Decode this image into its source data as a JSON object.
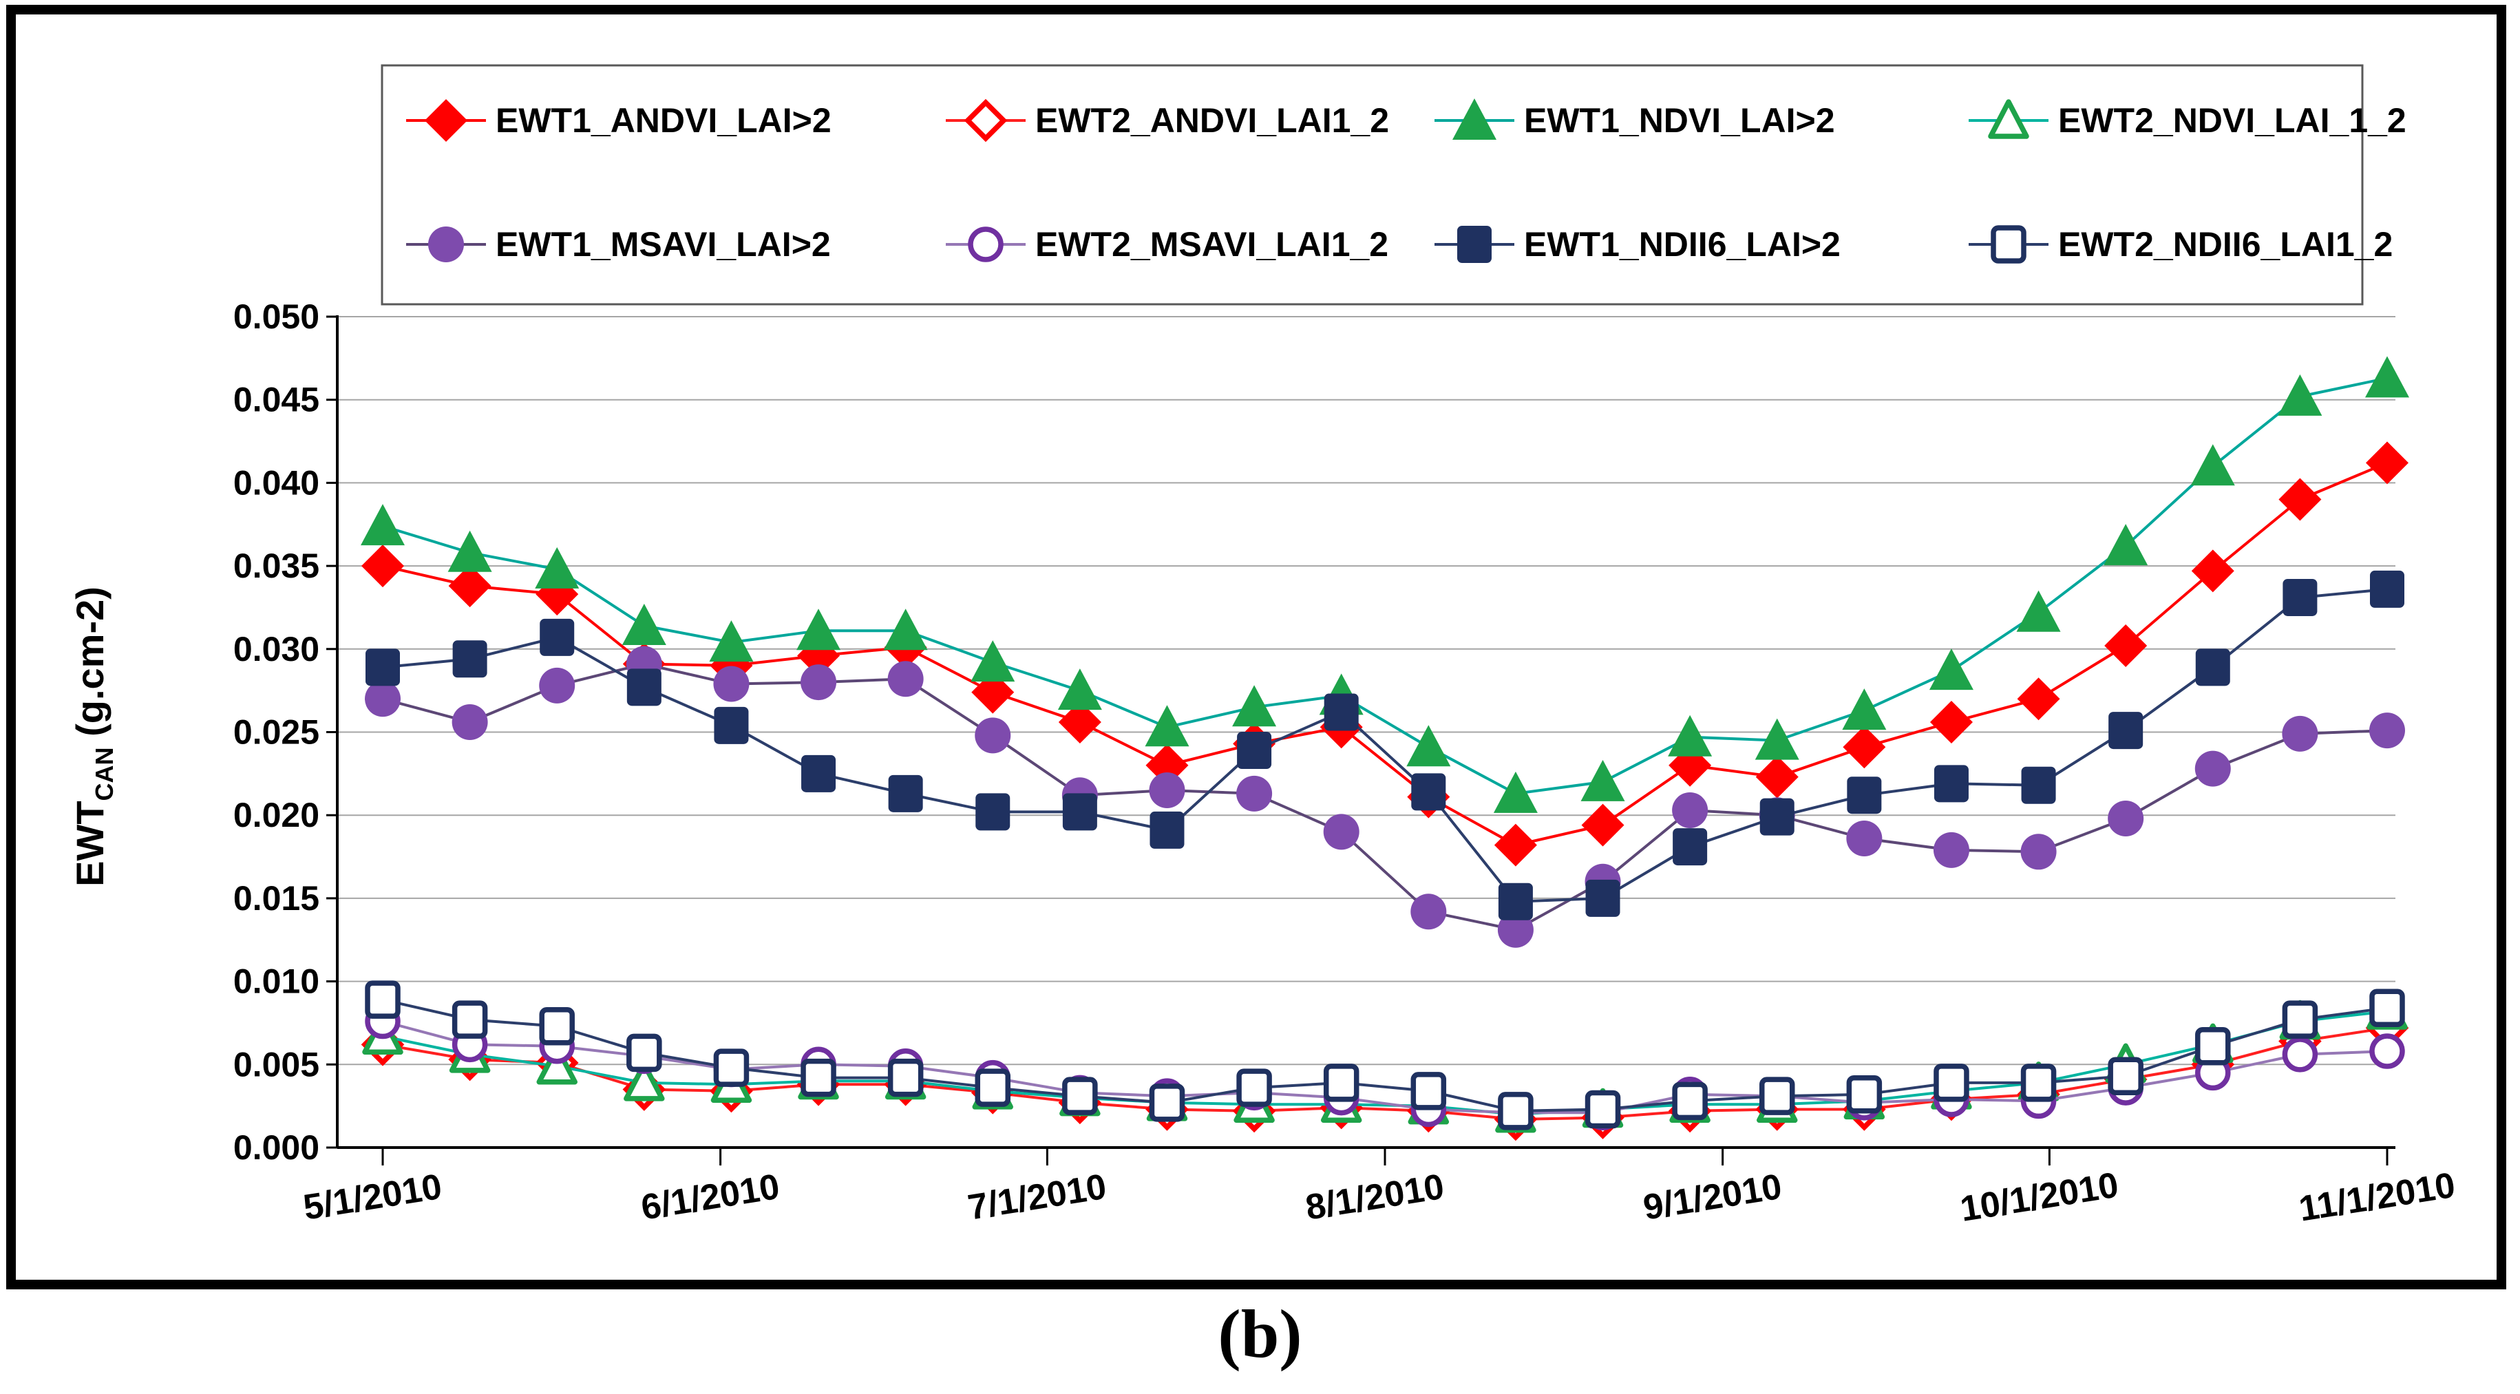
{
  "figure": {
    "caption": "(b)",
    "background_color": "#FFFFFF",
    "border_color": "#000000"
  },
  "y_axis": {
    "label_main": "EWT",
    "label_sub": "CAN",
    "label_unit": " (g.cm-2)",
    "tick_labels": [
      "0.000",
      "0.005",
      "0.010",
      "0.015",
      "0.020",
      "0.025",
      "0.030",
      "0.035",
      "0.040",
      "0.045",
      "0.050"
    ],
    "tick_values": [
      0,
      0.005,
      0.01,
      0.015,
      0.02,
      0.025,
      0.03,
      0.035,
      0.04,
      0.045,
      0.05
    ]
  },
  "x_axis": {
    "tick_labels": [
      "5/1/2010",
      "6/1/2010",
      "7/1/2010",
      "8/1/2010",
      "9/1/2010",
      "10/1/2010",
      "11/1/2010"
    ]
  },
  "legend": {
    "entries": [
      {
        "label": "EWT1_ANDVI_LAI>2",
        "shape": "diamond",
        "open": false,
        "color": "#FF0000",
        "line_color": "#FF0000"
      },
      {
        "label": "EWT2_ANDVI_LAI1_2",
        "shape": "diamond",
        "open": true,
        "color": "#FF0000",
        "line_color": "#FF2020"
      },
      {
        "label": "EWT1_NDVI_LAI>2",
        "shape": "triangle",
        "open": false,
        "color": "#1EA34A",
        "line_color": "#00A79B"
      },
      {
        "label": "EWT2_NDVI_LAI_1_2",
        "shape": "triangle",
        "open": true,
        "color": "#1EA34A",
        "line_color": "#00B4A0"
      },
      {
        "label": "EWT1_MSAVI_LAI>2",
        "shape": "circle",
        "open": false,
        "color": "#7E4BAD",
        "line_color": "#5C4776"
      },
      {
        "label": "EWT2_MSAVI_LAI1_2",
        "shape": "circle",
        "open": true,
        "color": "#7030A0",
        "line_color": "#9577B5"
      },
      {
        "label": "EWT1_NDII6_LAI>2",
        "shape": "square",
        "open": false,
        "color": "#1F3160",
        "line_color": "#2C3E6B"
      },
      {
        "label": "EWT2_NDII6_LAI1_2",
        "shape": "square",
        "open": true,
        "color": "#1F3160",
        "line_color": "#2C3E6B"
      }
    ]
  },
  "chart_data": {
    "type": "line",
    "title": "",
    "xlabel": "",
    "ylabel": "EWT_CAN (g.cm-2)",
    "ylim": [
      0,
      0.05
    ],
    "grid": "horizontal",
    "legend_position": "top",
    "x": [
      "5/1/2010",
      "5/9/2010",
      "5/17/2010",
      "5/25/2010",
      "6/2/2010",
      "6/10/2010",
      "6/18/2010",
      "6/26/2010",
      "7/4/2010",
      "7/12/2010",
      "7/20/2010",
      "7/28/2010",
      "8/5/2010",
      "8/13/2010",
      "8/21/2010",
      "8/29/2010",
      "9/6/2010",
      "9/14/2010",
      "9/22/2010",
      "9/30/2010",
      "10/8/2010",
      "10/16/2010",
      "10/24/2010",
      "11/1/2010"
    ],
    "series": [
      {
        "name": "EWT1_ANDVI_LAI>2",
        "shape": "diamond",
        "open": false,
        "color": "#FF0000",
        "line_color": "#FF0000",
        "values": [
          0.035,
          0.0338,
          0.0333,
          0.0291,
          0.029,
          0.0296,
          0.0301,
          0.0274,
          0.0256,
          0.023,
          0.0243,
          0.0253,
          0.0211,
          0.0182,
          0.0194,
          0.023,
          0.0223,
          0.0241,
          0.0256,
          0.027,
          0.0302,
          0.0347,
          0.039,
          0.0412
        ]
      },
      {
        "name": "EWT2_ANDVI_LAI1_2",
        "shape": "diamond",
        "open": true,
        "color": "#FF0000",
        "line_color": "#FF2020",
        "values": [
          0.0062,
          0.0053,
          0.0051,
          0.0035,
          0.0034,
          0.0038,
          0.0038,
          0.0033,
          0.0027,
          0.0023,
          0.0022,
          0.0024,
          0.0022,
          0.0017,
          0.0018,
          0.0022,
          0.0023,
          0.0023,
          0.0029,
          0.0032,
          0.0041,
          0.005,
          0.0064,
          0.0072
        ]
      },
      {
        "name": "EWT1_NDVI_LAI>2",
        "shape": "triangle",
        "open": false,
        "color": "#1EA34A",
        "line_color": "#00A79B",
        "values": [
          0.0374,
          0.0358,
          0.0348,
          0.0314,
          0.0304,
          0.0311,
          0.0311,
          0.0292,
          0.0275,
          0.0253,
          0.0265,
          0.0272,
          0.0241,
          0.0213,
          0.022,
          0.0247,
          0.0245,
          0.0263,
          0.0287,
          0.0322,
          0.0362,
          0.041,
          0.0452,
          0.0463
        ]
      },
      {
        "name": "EWT2_NDVI_LAI_1_2",
        "shape": "triangle",
        "open": true,
        "color": "#1EA34A",
        "line_color": "#00B4A0",
        "values": [
          0.0067,
          0.0056,
          0.0049,
          0.0039,
          0.0038,
          0.004,
          0.004,
          0.0034,
          0.003,
          0.0027,
          0.0026,
          0.0026,
          0.0025,
          0.002,
          0.0023,
          0.0026,
          0.0026,
          0.0028,
          0.0034,
          0.0039,
          0.005,
          0.0062,
          0.0076,
          0.0082
        ]
      },
      {
        "name": "EWT1_MSAVI_LAI>2",
        "shape": "circle",
        "open": false,
        "color": "#7E4BAD",
        "line_color": "#5C4776",
        "values": [
          0.027,
          0.0256,
          0.0278,
          0.0291,
          0.0279,
          0.028,
          0.0282,
          0.0248,
          0.0212,
          0.0215,
          0.0213,
          0.019,
          0.0142,
          0.0131,
          0.016,
          0.0203,
          0.02,
          0.0186,
          0.0179,
          0.0178,
          0.0198,
          0.0228,
          0.0249,
          0.0251
        ]
      },
      {
        "name": "EWT2_MSAVI_LAI1_2",
        "shape": "circle",
        "open": true,
        "color": "#7030A0",
        "line_color": "#9577B5",
        "values": [
          0.0076,
          0.0062,
          0.0061,
          0.0055,
          0.0047,
          0.005,
          0.0049,
          0.0042,
          0.0033,
          0.0031,
          0.0033,
          0.003,
          0.0023,
          0.0021,
          0.0021,
          0.0032,
          0.0031,
          0.0027,
          0.0029,
          0.0028,
          0.0036,
          0.0045,
          0.0056,
          0.0058
        ]
      },
      {
        "name": "EWT1_NDII6_LAI>2",
        "shape": "square",
        "open": false,
        "color": "#1F3160",
        "line_color": "#2C3E6B",
        "values": [
          0.0289,
          0.0294,
          0.0307,
          0.0277,
          0.0254,
          0.0225,
          0.0213,
          0.0202,
          0.0202,
          0.0191,
          0.0239,
          0.0262,
          0.0214,
          0.0148,
          0.015,
          0.0181,
          0.0199,
          0.0212,
          0.0219,
          0.0218,
          0.0251,
          0.0289,
          0.0331,
          0.0336
        ]
      },
      {
        "name": "EWT2_NDII6_LAI1_2",
        "shape": "square",
        "open": true,
        "color": "#1F3160",
        "line_color": "#2C3E6B",
        "values": [
          0.0089,
          0.0077,
          0.0073,
          0.0057,
          0.0048,
          0.0042,
          0.0042,
          0.0036,
          0.0031,
          0.0027,
          0.0036,
          0.0039,
          0.0034,
          0.0022,
          0.0023,
          0.0028,
          0.0031,
          0.0032,
          0.0039,
          0.0039,
          0.0043,
          0.0061,
          0.0077,
          0.0084
        ]
      }
    ]
  },
  "colors": {
    "gridline": "#A6A6A6",
    "axis": "#000000",
    "legend_border": "#595959"
  }
}
